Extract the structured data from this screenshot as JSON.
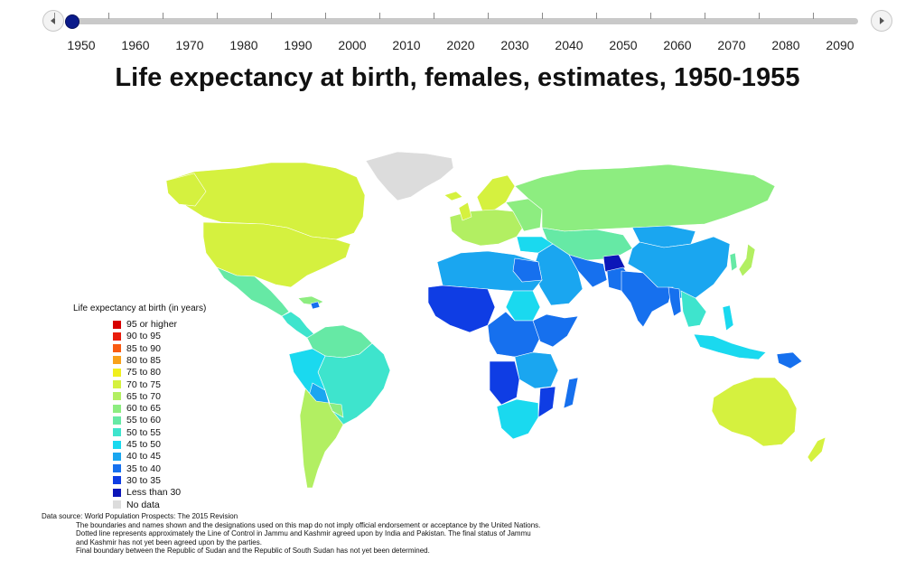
{
  "timeline": {
    "years": [
      "1950",
      "1960",
      "1970",
      "1980",
      "1990",
      "2000",
      "2010",
      "2020",
      "2030",
      "2040",
      "2050",
      "2060",
      "2070",
      "2080",
      "2090"
    ],
    "current_year": "1950",
    "prev_icon": "chevron-left-icon",
    "next_icon": "chevron-right-icon"
  },
  "title": "Life expectancy at birth, females, estimates, 1950-1955",
  "legend": {
    "title": "Life expectancy at birth (in years)",
    "items": [
      {
        "label": "95 or higher",
        "color": "#d70000"
      },
      {
        "label": "90 to 95",
        "color": "#e81c0c"
      },
      {
        "label": "85 to 90",
        "color": "#f95b12"
      },
      {
        "label": "80 to 85",
        "color": "#f8a21a"
      },
      {
        "label": "75 to 80",
        "color": "#f0ef1e"
      },
      {
        "label": "70 to 75",
        "color": "#d5f13f"
      },
      {
        "label": "65 to 70",
        "color": "#b2ef62"
      },
      {
        "label": "60 to 65",
        "color": "#8ded80"
      },
      {
        "label": "55 to 60",
        "color": "#66e9a5"
      },
      {
        "label": "50 to 55",
        "color": "#3ee4cd"
      },
      {
        "label": "45 to 50",
        "color": "#1ad9ef"
      },
      {
        "label": "40 to 45",
        "color": "#1aa6f0"
      },
      {
        "label": "35 to 40",
        "color": "#1670ee"
      },
      {
        "label": "30 to 35",
        "color": "#0f3de4"
      },
      {
        "label": "Less than 30",
        "color": "#0c16b8"
      },
      {
        "label": "No data",
        "color": "#dcdcdc"
      }
    ]
  },
  "notes": {
    "source": "Data source: World Population Prospects: The 2015 Revision",
    "line1": "The boundaries and names shown and the designations used on this map do not imply official endorsement or acceptance by the United Nations.",
    "line2": "Dotted line represents approximately the Line of Control in Jammu and Kashmir agreed upon by India and Pakistan. The final status of Jammu",
    "line3": "and Kashmir has not yet been agreed upon by the parties.",
    "line4": "Final boundary between the Republic of Sudan and the Republic of South Sudan has not yet been determined."
  }
}
